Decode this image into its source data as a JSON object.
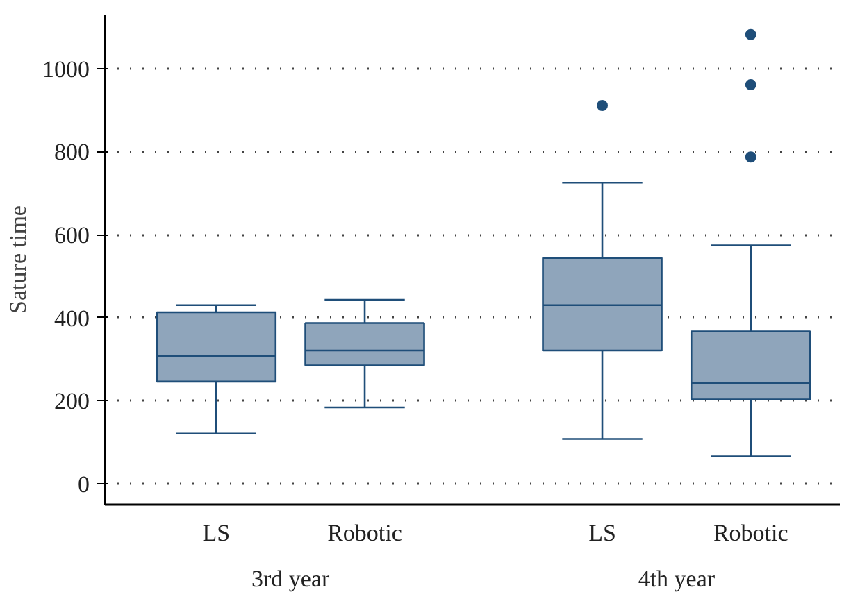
{
  "chart_data": {
    "type": "box",
    "ylabel": "Sature time",
    "categories": [
      "LS",
      "Robotic",
      "LS",
      "Robotic"
    ],
    "annotations": [
      "3rd year",
      "4th year"
    ],
    "color": "#8fa5bb",
    "boxes": [
      {
        "low": 121,
        "q1": 246,
        "median": 308,
        "q3": 413,
        "high": 430
      },
      {
        "low": 184,
        "q1": 285,
        "median": 321,
        "q3": 387,
        "high": 443
      },
      {
        "low": 108,
        "q1": 321,
        "median": 430,
        "q3": 544,
        "high": 725,
        "outliers": [
          911
        ]
      },
      {
        "low": 66,
        "q1": 203,
        "median": 243,
        "q3": 367,
        "high": 574,
        "outliers": [
          787,
          961,
          1082
        ]
      }
    ],
    "ylim": [
      -50,
      1130
    ],
    "yticks": [
      0,
      200,
      400,
      600,
      800,
      1000
    ],
    "grid": "y"
  }
}
